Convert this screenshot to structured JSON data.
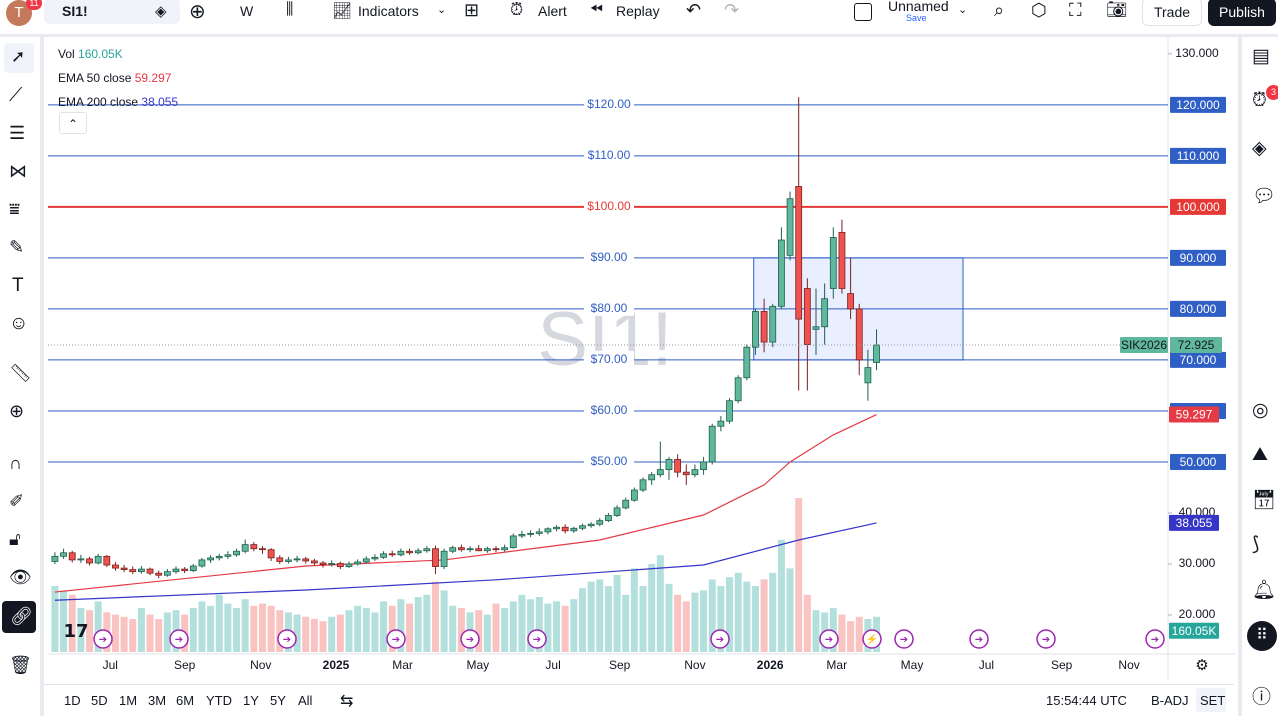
{
  "toolbar": {
    "avatar": "T",
    "avatar_badge": "11",
    "symbol": "SI1!",
    "interval": "W",
    "indicators": "Indicators",
    "alert": "Alert",
    "replay": "Replay",
    "layout_name": "Unnamed",
    "save": "Save",
    "trade": "Trade",
    "publish": "Publish"
  },
  "sidebar_badge": "3",
  "watermark": "SI1!",
  "chart_data": {
    "type": "candlestick",
    "candles": [
      [
        30.5,
        32.3,
        30.0,
        31.5
      ],
      [
        31.5,
        33.0,
        31.0,
        32.2
      ],
      [
        32.2,
        32.6,
        30.3,
        30.8
      ],
      [
        30.8,
        31.8,
        30.2,
        31.0
      ],
      [
        31.0,
        31.4,
        29.7,
        30.2
      ],
      [
        30.2,
        32.0,
        29.9,
        31.5
      ],
      [
        31.5,
        31.8,
        29.4,
        29.8
      ],
      [
        29.8,
        30.4,
        28.7,
        29.2
      ],
      [
        29.2,
        29.8,
        28.4,
        28.9
      ],
      [
        28.9,
        29.5,
        28.0,
        28.5
      ],
      [
        28.5,
        29.6,
        28.1,
        29.0
      ],
      [
        29.0,
        29.3,
        27.8,
        28.2
      ],
      [
        28.2,
        28.7,
        27.2,
        27.8
      ],
      [
        27.8,
        29.0,
        27.5,
        28.5
      ],
      [
        28.5,
        29.5,
        28.1,
        29.0
      ],
      [
        29.0,
        29.4,
        28.2,
        28.7
      ],
      [
        28.7,
        30.0,
        28.4,
        29.6
      ],
      [
        29.6,
        31.2,
        29.3,
        30.8
      ],
      [
        30.8,
        31.7,
        30.2,
        31.2
      ],
      [
        31.2,
        32.0,
        30.7,
        31.5
      ],
      [
        31.5,
        32.5,
        31.0,
        31.8
      ],
      [
        31.8,
        33.0,
        31.4,
        32.5
      ],
      [
        32.5,
        34.8,
        32.1,
        33.8
      ],
      [
        33.8,
        34.3,
        32.5,
        33.0
      ],
      [
        33.0,
        33.5,
        32.0,
        32.8
      ],
      [
        32.8,
        33.1,
        30.6,
        31.2
      ],
      [
        31.2,
        31.7,
        30.0,
        30.5
      ],
      [
        30.5,
        31.4,
        30.1,
        30.8
      ],
      [
        30.8,
        31.6,
        30.3,
        31.0
      ],
      [
        31.0,
        31.4,
        30.1,
        30.6
      ],
      [
        30.6,
        31.0,
        29.7,
        30.2
      ],
      [
        30.2,
        30.6,
        29.3,
        29.9
      ],
      [
        29.9,
        30.7,
        29.5,
        30.1
      ],
      [
        30.1,
        30.5,
        29.0,
        29.5
      ],
      [
        29.5,
        30.5,
        29.2,
        30.0
      ],
      [
        30.0,
        30.9,
        29.7,
        30.4
      ],
      [
        30.4,
        31.5,
        30.1,
        31.0
      ],
      [
        31.0,
        31.9,
        30.6,
        31.3
      ],
      [
        31.3,
        32.5,
        31.0,
        32.0
      ],
      [
        32.0,
        32.6,
        31.4,
        31.8
      ],
      [
        31.8,
        33.0,
        31.5,
        32.5
      ],
      [
        32.5,
        33.0,
        31.8,
        32.2
      ],
      [
        32.2,
        33.1,
        31.9,
        32.6
      ],
      [
        32.6,
        33.5,
        32.2,
        33.0
      ],
      [
        33.0,
        33.6,
        28.0,
        29.5
      ],
      [
        29.5,
        33.0,
        29.0,
        32.5
      ],
      [
        32.5,
        33.6,
        32.1,
        33.2
      ],
      [
        33.2,
        33.8,
        32.4,
        32.8
      ],
      [
        32.8,
        33.5,
        32.3,
        33.0
      ],
      [
        33.0,
        33.7,
        32.5,
        32.6
      ],
      [
        32.6,
        33.4,
        32.2,
        33.0
      ],
      [
        33.0,
        33.5,
        32.3,
        32.8
      ],
      [
        32.8,
        33.8,
        32.4,
        33.2
      ],
      [
        33.2,
        36.0,
        33.0,
        35.5
      ],
      [
        35.5,
        36.5,
        35.1,
        35.8
      ],
      [
        35.8,
        36.6,
        35.3,
        36.0
      ],
      [
        36.0,
        37.0,
        35.5,
        36.3
      ],
      [
        36.3,
        37.2,
        35.8,
        36.9
      ],
      [
        36.9,
        37.6,
        36.4,
        37.2
      ],
      [
        37.2,
        37.8,
        36.0,
        36.5
      ],
      [
        36.5,
        37.3,
        36.1,
        37.0
      ],
      [
        37.0,
        37.9,
        36.6,
        37.5
      ],
      [
        37.5,
        38.2,
        37.1,
        37.8
      ],
      [
        37.8,
        39.0,
        37.4,
        38.5
      ],
      [
        38.5,
        40.0,
        38.2,
        39.5
      ],
      [
        39.5,
        41.5,
        39.2,
        41.0
      ],
      [
        41.0,
        43.0,
        40.7,
        42.5
      ],
      [
        42.5,
        45.0,
        42.2,
        44.5
      ],
      [
        44.5,
        47.0,
        44.1,
        46.5
      ],
      [
        46.5,
        48.0,
        45.5,
        47.5
      ],
      [
        47.5,
        54.0,
        47.0,
        48.5
      ],
      [
        48.5,
        51.0,
        46.5,
        50.5
      ],
      [
        50.5,
        51.5,
        47.0,
        48.0
      ],
      [
        48.0,
        49.5,
        45.5,
        47.5
      ],
      [
        47.5,
        49.5,
        47.0,
        48.5
      ],
      [
        48.5,
        51.0,
        47.5,
        50.0
      ],
      [
        50.0,
        57.5,
        49.5,
        57.0
      ],
      [
        57.0,
        59.0,
        56.0,
        58.0
      ],
      [
        58.0,
        62.5,
        57.5,
        62.0
      ],
      [
        62.0,
        67.0,
        61.5,
        66.5
      ],
      [
        66.5,
        73.0,
        66.0,
        72.5
      ],
      [
        72.5,
        80.0,
        71.0,
        79.5
      ],
      [
        79.5,
        82.0,
        71.5,
        73.5
      ],
      [
        73.5,
        81.0,
        72.5,
        80.5
      ],
      [
        80.5,
        96.0,
        80.0,
        93.5
      ],
      [
        90.5,
        103.0,
        89.5,
        101.6
      ],
      [
        104.0,
        121.5,
        64.0,
        78.0
      ],
      [
        84.0,
        86.0,
        64.0,
        73.0
      ],
      [
        76.0,
        84.0,
        71.0,
        76.5
      ],
      [
        76.5,
        85.0,
        73.0,
        82.0
      ],
      [
        84.0,
        96.0,
        82.0,
        94.0
      ],
      [
        95.0,
        97.5,
        83.0,
        84.0
      ],
      [
        83.0,
        90.0,
        78.0,
        80.0
      ],
      [
        80.0,
        81.0,
        67.0,
        70.0
      ],
      [
        65.5,
        72.0,
        62.0,
        68.5
      ],
      [
        69.5,
        76.0,
        68.0,
        72.925
      ]
    ],
    "volume_name": "Vol",
    "volumes": [
      300,
      280,
      260,
      200,
      190,
      230,
      180,
      170,
      160,
      150,
      200,
      170,
      150,
      180,
      190,
      170,
      200,
      230,
      210,
      260,
      220,
      200,
      240,
      210,
      220,
      210,
      190,
      180,
      170,
      160,
      150,
      140,
      160,
      170,
      190,
      210,
      200,
      180,
      230,
      210,
      240,
      220,
      250,
      260,
      320,
      280,
      210,
      200,
      180,
      190,
      170,
      220,
      200,
      230,
      260,
      240,
      250,
      220,
      230,
      210,
      240,
      290,
      320,
      330,
      300,
      350,
      260,
      380,
      300,
      400,
      440,
      310,
      260,
      230,
      270,
      280,
      330,
      300,
      340,
      360,
      320,
      300,
      330,
      360,
      510,
      380,
      700,
      260,
      190,
      180,
      200,
      170,
      140,
      160,
      150,
      160.05
    ],
    "volume_label": "160.05K",
    "vlim": [
      0,
      700
    ],
    "ylim": [
      12.75,
      133.1
    ],
    "xlim": [
      -0.8,
      128.7
    ],
    "yticks": [
      {
        "value": 130,
        "label": "130.000"
      },
      {
        "value": 40,
        "label": "40.000"
      },
      {
        "value": 30,
        "label": "30.000"
      },
      {
        "value": 20,
        "label": "20.000"
      }
    ],
    "xticks": [
      {
        "value": 6.4,
        "label": "Jul"
      },
      {
        "value": 15.0,
        "label": "Sep"
      },
      {
        "value": 23.8,
        "label": "Nov"
      },
      {
        "value": 32.5,
        "label": "2025"
      },
      {
        "value": 40.2,
        "label": "Mar"
      },
      {
        "value": 48.9,
        "label": "May"
      },
      {
        "value": 57.6,
        "label": "Jul"
      },
      {
        "value": 65.3,
        "label": "Sep"
      },
      {
        "value": 74.0,
        "label": "Nov"
      },
      {
        "value": 82.7,
        "label": "2026"
      },
      {
        "value": 90.4,
        "label": "Mar"
      },
      {
        "value": 99.1,
        "label": "May"
      },
      {
        "value": 107.7,
        "label": "Jul"
      },
      {
        "value": 116.4,
        "label": "Sep"
      },
      {
        "value": 124.2,
        "label": "Nov"
      }
    ],
    "levels": [
      {
        "value": 120,
        "label": "$120.00",
        "axis_label": "120.000",
        "color": "#2f5ec4",
        "line_width": 1
      },
      {
        "value": 110,
        "label": "$110.00",
        "axis_label": "110.000",
        "color": "#2f5ec4",
        "line_width": 1
      },
      {
        "value": 100,
        "label": "$100.00",
        "axis_label": "100.000",
        "color": "#e53935",
        "line_width": 2
      },
      {
        "value": 90,
        "label": "$90.00",
        "axis_label": "90.000",
        "color": "#2f5ec4",
        "line_width": 1
      },
      {
        "value": 80,
        "label": "$80.00",
        "axis_label": "80.000",
        "color": "#2f5ec4",
        "line_width": 1
      },
      {
        "value": 70,
        "label": "$70.00",
        "axis_label": "70.000",
        "color": "#2f5ec4",
        "line_width": 1
      },
      {
        "value": 60,
        "label": "$60.00",
        "axis_label": "60.000",
        "color": "#2f5ec4",
        "line_width": 1
      },
      {
        "value": 50,
        "label": "$50.00",
        "axis_label": "50.000",
        "color": "#2f5ec4",
        "line_width": 1
      }
    ],
    "box": {
      "x": [
        80.8,
        105.0
      ],
      "y": [
        70,
        90
      ]
    },
    "series": [
      {
        "name": "EMA 50 close",
        "color": "#e53945",
        "x": [
          0,
          29,
          45,
          63,
          75,
          82,
          85,
          90,
          95
        ],
        "values": [
          24.5,
          29.6,
          30.8,
          34.7,
          39.6,
          45.5,
          50,
          55.3,
          59.297
        ]
      },
      {
        "name": "EMA 200 close",
        "color": "#3535c8",
        "x": [
          0,
          29,
          51,
          75,
          86,
          95
        ],
        "values": [
          22.9,
          24.9,
          26.9,
          29.8,
          34.7,
          38.055
        ]
      }
    ],
    "last_price": {
      "name": "SIK2026",
      "value": 72.925
    }
  },
  "bottom": {
    "ranges": [
      "1D",
      "5D",
      "1M",
      "3M",
      "6M",
      "YTD",
      "1Y",
      "5Y",
      "All"
    ],
    "time": "15:54:44 UTC",
    "adjust": "B-ADJ",
    "session": "SET"
  }
}
